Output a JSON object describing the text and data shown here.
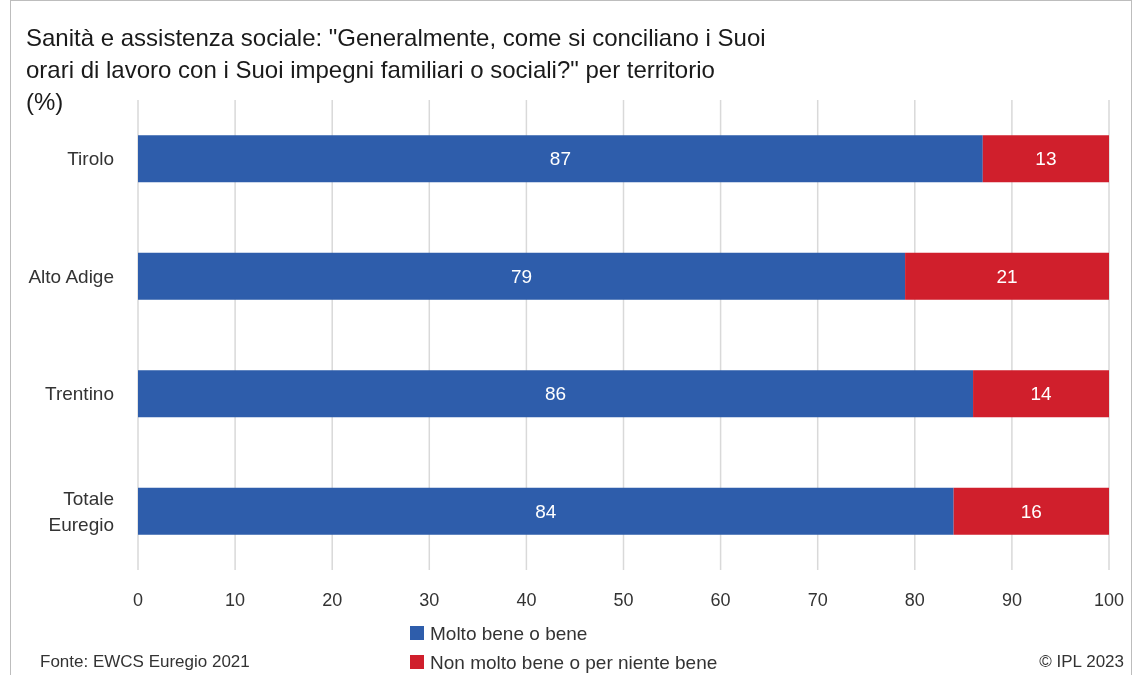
{
  "chart_data": {
    "type": "bar",
    "orientation": "horizontal",
    "stacked": true,
    "title": "Sanità e assistenza sociale: \"Generalmente, come si conciliano i Suoi orari di lavoro con i Suoi impegni familiari o sociali?\" per territorio (%)",
    "categories": [
      "Tirolo",
      "Alto Adige",
      "Trentino",
      "Totale Euregio"
    ],
    "series": [
      {
        "name": "Molto bene o bene",
        "color": "#2e5dab",
        "values": [
          87,
          79,
          86,
          84
        ]
      },
      {
        "name": "Non molto bene o per niente bene",
        "color": "#d01f2c",
        "values": [
          13,
          21,
          14,
          16
        ]
      }
    ],
    "xlim": [
      0,
      100
    ],
    "xticks": [
      0,
      10,
      20,
      30,
      40,
      50,
      60,
      70,
      80,
      90,
      100
    ],
    "grid": "x",
    "legend": "bottom",
    "data_labels": true,
    "annotations": [
      "Fonte: EWCS Euregio 2021",
      "© IPL 2023"
    ]
  }
}
